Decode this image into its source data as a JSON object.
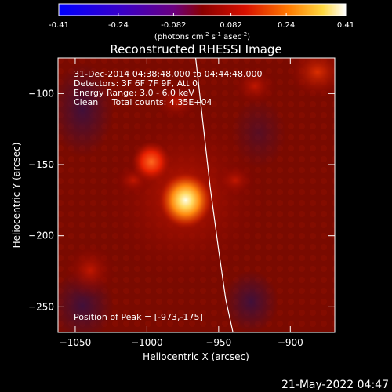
{
  "colorbar": {
    "ticks": [
      "-0.41",
      "-0.24",
      "-0.082",
      "0.082",
      "0.24",
      "0.41"
    ],
    "tick_values": [
      -0.41,
      -0.24,
      -0.082,
      0.082,
      0.24,
      0.41
    ],
    "units_prefix": "(photons cm",
    "units_sup1": "-2",
    "units_mid": " s",
    "units_sup2": "-1",
    "units_mid2": " asec",
    "units_sup3": "-2",
    "units_suffix": ")"
  },
  "chart_data": {
    "type": "heatmap",
    "title": "Reconstructed RHESSI Image",
    "xlabel": "Heliocentric X (arcsec)",
    "ylabel": "Heliocentric Y (arcsec)",
    "xlim": [
      -1062,
      -869
    ],
    "ylim": [
      -268,
      -75
    ],
    "x_ticks": [
      -1050,
      -1000,
      -950,
      -900
    ],
    "x_tick_labels": [
      "−1050",
      "−1000",
      "−950",
      "−900"
    ],
    "y_ticks": [
      -100,
      -150,
      -200,
      -250
    ],
    "y_tick_labels": [
      "−100",
      "−150",
      "−200",
      "−250"
    ],
    "value_range": [
      -0.41,
      0.41
    ],
    "sources": [
      {
        "x": -973,
        "y": -175,
        "value": 0.41
      },
      {
        "x": -997,
        "y": -148,
        "value": 0.24
      }
    ],
    "limb_points": [
      [
        -966,
        -75
      ],
      [
        -961,
        -120
      ],
      [
        -956,
        -165
      ],
      [
        -950,
        -210
      ],
      [
        -945,
        -245
      ],
      [
        -940,
        -268
      ]
    ],
    "info_lines": [
      "31-Dec-2014 04:38:48.000 to 04:44:48.000",
      "Detectors: 3F 6F 7F 9F, Att 0",
      "Energy Range: 3.0 - 6.0 keV",
      "Clean     Total counts: 4.35E+04"
    ],
    "peak_text": "Position of Peak = [-973,-175]"
  },
  "footer": {
    "timestamp": "21-May-2022 04:47"
  }
}
